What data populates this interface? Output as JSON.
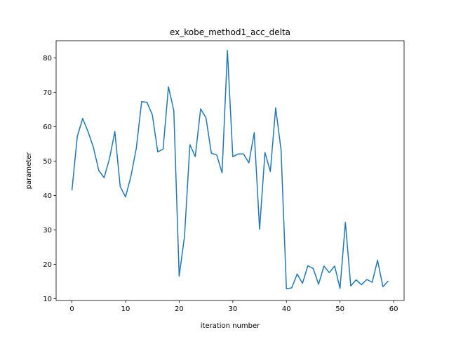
{
  "chart_data": {
    "type": "line",
    "title": "ex_kobe_method1_acc_delta",
    "xlabel": "iteration number",
    "ylabel": "parameter",
    "xlim": [
      -2.95,
      61.95
    ],
    "ylim": [
      9.5,
      85.0
    ],
    "xticks": [
      0,
      10,
      20,
      30,
      40,
      50,
      60
    ],
    "yticks": [
      10,
      20,
      30,
      40,
      50,
      60,
      70,
      80
    ],
    "grid": false,
    "legend": "none",
    "series": [
      {
        "color": "#1f77b4",
        "x": [
          0,
          1,
          2,
          3,
          4,
          5,
          6,
          7,
          8,
          9,
          10,
          11,
          12,
          13,
          14,
          15,
          16,
          17,
          18,
          19,
          20,
          21,
          22,
          23,
          24,
          25,
          26,
          27,
          28,
          29,
          30,
          31,
          32,
          33,
          34,
          35,
          36,
          37,
          38,
          39,
          40,
          41,
          42,
          43,
          44,
          45,
          46,
          47,
          48,
          49,
          50,
          51,
          52,
          53,
          54,
          55,
          56,
          57,
          58,
          59
        ],
        "y": [
          41.5,
          57.2,
          62.4,
          58.6,
          54.0,
          47.3,
          45.2,
          50.7,
          58.6,
          42.6,
          39.6,
          45.6,
          53.7,
          67.3,
          67.1,
          63.4,
          52.7,
          53.5,
          71.6,
          64.7,
          16.6,
          28.2,
          54.8,
          51.3,
          65.2,
          62.6,
          52.3,
          51.8,
          46.6,
          82.2,
          51.3,
          52.1,
          52.1,
          49.5,
          58.3,
          30.2,
          52.5,
          47.0,
          65.5,
          53.3,
          12.9,
          13.2,
          17.2,
          14.5,
          19.6,
          18.8,
          14.2,
          19.5,
          17.6,
          19.5,
          13.0,
          32.2,
          13.7,
          15.5,
          14.1,
          15.6,
          14.8,
          21.2,
          13.5,
          15.2
        ]
      }
    ]
  }
}
